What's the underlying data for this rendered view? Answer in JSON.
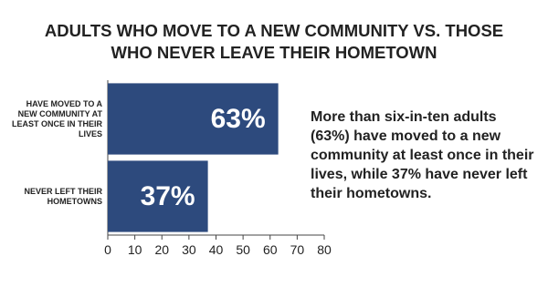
{
  "chart_data": {
    "type": "hbar",
    "title": "ADULTS WHO MOVE TO A NEW COMMUNITY VS. THOSE WHO NEVER LEAVE THEIR HOMETOWN",
    "categories": [
      "HAVE MOVED TO A NEW COMMUNITY AT LEAST ONCE IN THEIR LIVES",
      "NEVER LEFT THEIR HOMETOWNS"
    ],
    "values": [
      63,
      37
    ],
    "value_labels": [
      "63%",
      "37%"
    ],
    "color": "#2d4a7d",
    "xlim": [
      0,
      80
    ],
    "xticks": [
      0,
      10,
      20,
      30,
      40,
      50,
      60,
      70,
      80
    ],
    "annotation": "More than six-in-ten adults (63%) have moved to a new community at least once in their lives, while 37% have never left their hometowns."
  }
}
